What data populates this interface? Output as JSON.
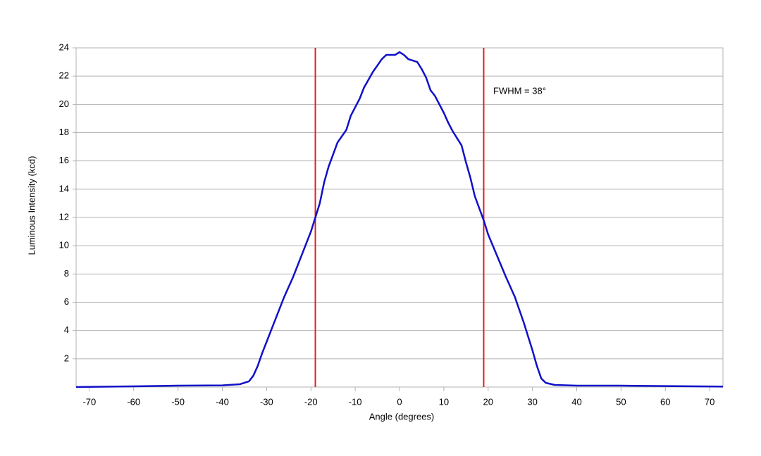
{
  "chart_data": {
    "type": "line",
    "x_label": "Angle (degrees)",
    "y_label": "Luminous Intensity (kcd)",
    "annotation": "FWHM = 38°",
    "x": [
      -73,
      -60,
      -50,
      -40,
      -36,
      -34,
      -33,
      -32,
      -31,
      -30,
      -28,
      -26,
      -24,
      -22,
      -20,
      -19,
      -18,
      -17,
      -16,
      -14,
      -12,
      -11,
      -10,
      -9,
      -8,
      -6,
      -4,
      -3,
      -1,
      0,
      1,
      2,
      4,
      5,
      6,
      7,
      8,
      10,
      11,
      12,
      14,
      15,
      16,
      17,
      19,
      20,
      22,
      24,
      26,
      28,
      30,
      31,
      32,
      33,
      35,
      40,
      50,
      60,
      73
    ],
    "series": [
      {
        "name": "Luminous Intensity",
        "color": "#1010c8",
        "values": [
          0,
          0.05,
          0.1,
          0.12,
          0.2,
          0.4,
          0.8,
          1.5,
          2.4,
          3.2,
          4.8,
          6.4,
          7.8,
          9.4,
          11,
          12,
          13,
          14.5,
          15.6,
          17.3,
          18.2,
          19.2,
          19.8,
          20.4,
          21.2,
          22.3,
          23.2,
          23.5,
          23.5,
          23.7,
          23.5,
          23.2,
          23.0,
          22.5,
          21.9,
          21.0,
          20.6,
          19.4,
          18.7,
          18.1,
          17.1,
          15.9,
          14.8,
          13.5,
          11.8,
          10.8,
          9.3,
          7.8,
          6.4,
          4.6,
          2.6,
          1.5,
          0.6,
          0.3,
          0.15,
          0.1,
          0.1,
          0.07,
          0.03
        ]
      }
    ],
    "vlines": [
      -19,
      19
    ],
    "vline_color": "#e02020",
    "xlim": [
      -73,
      73
    ],
    "ylim": [
      0,
      24
    ],
    "xticks": [
      -70,
      -60,
      -50,
      -40,
      -30,
      -20,
      -10,
      0,
      10,
      20,
      30,
      40,
      50,
      60,
      70
    ],
    "yticks": [
      2,
      4,
      6,
      8,
      10,
      12,
      14,
      16,
      18,
      20,
      22,
      24
    ],
    "grid": true
  }
}
